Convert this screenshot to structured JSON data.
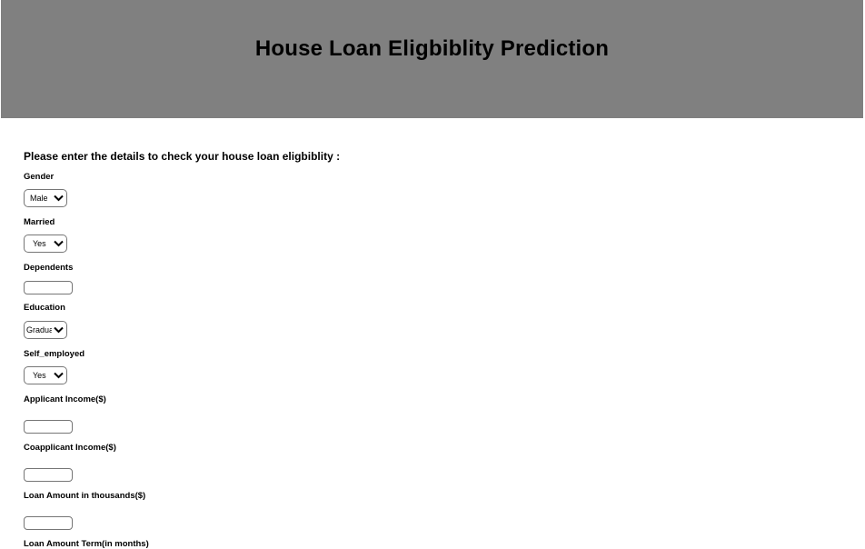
{
  "header": {
    "title": "House Loan Eligbiblity Prediction"
  },
  "form": {
    "intro": "Please enter the details to check your house loan eligbiblity :",
    "fields": {
      "gender": {
        "label": "Gender",
        "value": "Male"
      },
      "married": {
        "label": "Married",
        "value": "Yes"
      },
      "dependents": {
        "label": "Dependents",
        "value": ""
      },
      "education": {
        "label": "Education",
        "value": "Gradua"
      },
      "self_employed": {
        "label": "Self_employed",
        "value": "Yes"
      },
      "applicant_income": {
        "label": "Applicant Income($)",
        "value": ""
      },
      "coapplicant_income": {
        "label": "Coapplicant Income($)",
        "value": ""
      },
      "loan_amount": {
        "label": "Loan Amount in thousands($)",
        "value": ""
      },
      "loan_amount_term": {
        "label": "Loan Amount Term(in months)"
      }
    }
  },
  "icons": {
    "select_arrow": "chevron-down-icon"
  }
}
